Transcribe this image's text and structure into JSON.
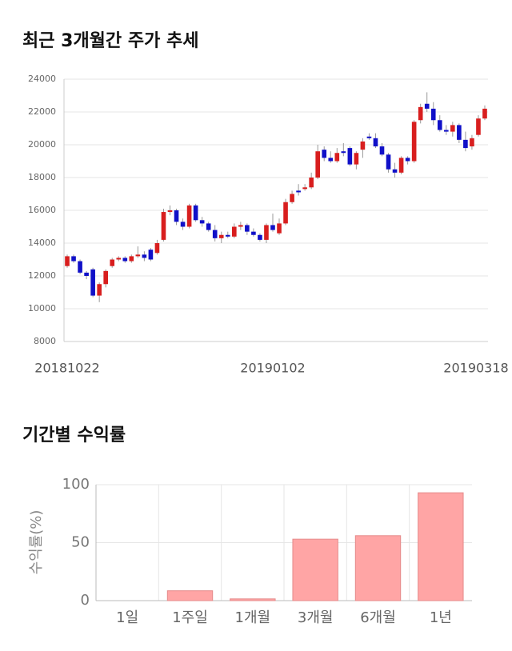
{
  "chart_data": [
    {
      "type": "candlestick",
      "title": "최근 3개월간 주가 추세",
      "categories": [
        "20181022",
        null,
        null,
        null,
        null,
        null,
        null,
        null,
        null,
        null,
        null,
        null,
        null,
        null,
        null,
        null,
        null,
        null,
        null,
        null,
        null,
        null,
        null,
        null,
        null,
        null,
        null,
        null,
        null,
        null,
        null,
        null,
        "20190102",
        null,
        null,
        null,
        null,
        null,
        null,
        null,
        null,
        null,
        null,
        null,
        null,
        null,
        null,
        null,
        null,
        null,
        null,
        null,
        null,
        null,
        null,
        null,
        null,
        null,
        null,
        null,
        null,
        null,
        null,
        null,
        null,
        "20190318"
      ],
      "open": [
        12600,
        13200,
        12900,
        12200,
        12400,
        10800,
        11500,
        12600,
        13000,
        13100,
        12900,
        13200,
        13300,
        13600,
        13400,
        14200,
        15900,
        16000,
        15300,
        15000,
        16300,
        15400,
        15200,
        14800,
        14300,
        14500,
        14400,
        15000,
        15100,
        14700,
        14500,
        14200,
        15100,
        14600,
        15200,
        16500,
        17200,
        17300,
        17400,
        18000,
        19700,
        19200,
        19000,
        19600,
        19800,
        18800,
        19700,
        20500,
        20400,
        19900,
        19400,
        18500,
        18300,
        19200,
        19000,
        21500,
        22500,
        22200,
        21500,
        20900,
        20800,
        21200,
        20300,
        19900,
        20600,
        21600
      ],
      "high": [
        13300,
        13300,
        13000,
        12300,
        12500,
        11600,
        12400,
        13100,
        13200,
        13200,
        13300,
        13800,
        13500,
        13700,
        14200,
        16100,
        16300,
        16100,
        15500,
        16400,
        16400,
        15600,
        15300,
        15100,
        14700,
        14700,
        15200,
        15300,
        15200,
        14900,
        14600,
        15200,
        15800,
        15500,
        16700,
        17200,
        17600,
        17600,
        18300,
        20000,
        19900,
        19600,
        19800,
        20100,
        19900,
        19600,
        20400,
        20700,
        20700,
        20100,
        19500,
        18900,
        19300,
        19300,
        21500,
        22500,
        23200,
        22600,
        21800,
        21200,
        21400,
        21300,
        20800,
        20600,
        21800,
        22400
      ],
      "low": [
        12500,
        12800,
        12100,
        11800,
        10700,
        10400,
        11300,
        12500,
        12900,
        12800,
        12800,
        13100,
        12900,
        12900,
        13300,
        14100,
        15700,
        15100,
        14800,
        14900,
        15300,
        15000,
        14700,
        14100,
        14000,
        14300,
        14300,
        14800,
        14500,
        14400,
        14100,
        14000,
        14700,
        14500,
        15100,
        16400,
        16900,
        17200,
        17300,
        17900,
        19000,
        18900,
        18900,
        19300,
        18700,
        18500,
        19200,
        20300,
        19800,
        19300,
        18300,
        18000,
        18200,
        18800,
        18900,
        21300,
        22000,
        21200,
        20800,
        20600,
        20500,
        20100,
        19600,
        19700,
        20500,
        21500
      ],
      "close": [
        13200,
        12900,
        12200,
        12000,
        10800,
        11500,
        12300,
        13000,
        13100,
        12900,
        13200,
        13300,
        13100,
        13000,
        14000,
        15900,
        16000,
        15300,
        15000,
        16300,
        15400,
        15200,
        14800,
        14300,
        14500,
        14400,
        15000,
        15100,
        14700,
        14500,
        14200,
        15100,
        14800,
        15200,
        16500,
        17000,
        17100,
        17400,
        18000,
        19600,
        19200,
        19000,
        19500,
        19500,
        18800,
        19500,
        20200,
        20400,
        19900,
        19400,
        18500,
        18300,
        19200,
        19000,
        21400,
        22300,
        22200,
        21500,
        20900,
        20800,
        21200,
        20300,
        19800,
        20400,
        21600,
        22200
      ],
      "up_color": "#d81e1e",
      "down_color": "#1010c8",
      "ylim": [
        8000,
        24000
      ],
      "yticks": [
        8000,
        10000,
        12000,
        14000,
        16000,
        18000,
        20000,
        22000,
        24000
      ],
      "grid": true
    },
    {
      "type": "bar",
      "title": "기간별 수익률",
      "y_label": "수익률(%)",
      "categories": [
        "1일",
        "1주일",
        "1개월",
        "3개월",
        "6개월",
        "1년"
      ],
      "values": [
        0,
        8.5,
        1.5,
        53,
        56,
        93
      ],
      "color": "#ffa5a5",
      "ylim": [
        0,
        100
      ],
      "yticks": [
        0,
        50,
        100
      ],
      "grid": true
    }
  ]
}
